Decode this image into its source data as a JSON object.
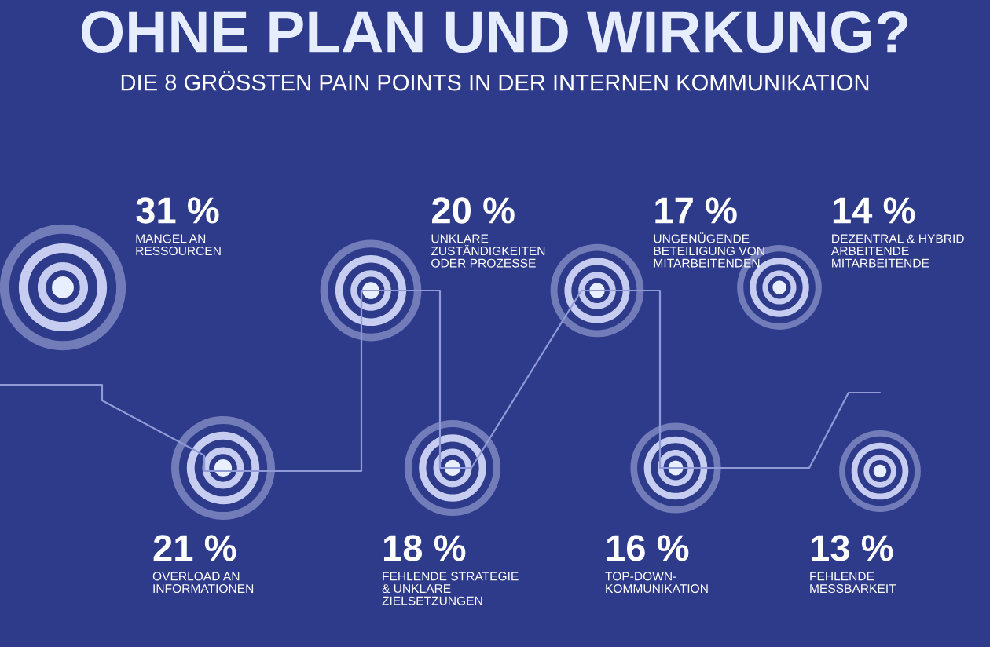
{
  "chart_data": {
    "type": "other",
    "title": "OHNE PLAN UND WIRKUNG?",
    "subtitle": "DIE 8 GRÖSSTEN PAIN POINTS IN DER INTERNEN KOMMUNIKATION",
    "categories": [
      "MANGEL AN\nRESSOURCEN",
      "OVERLOAD AN\nINFORMATIONEN",
      "UNKLARE\nZUSTÄNDIGKEITEN\nODER PROZESSE",
      "FEHLENDE STRATEGIE\n& UNKLARE\nZIELSETZUNGEN",
      "UNGENÜGENDE\nBETEILIGUNG VON\nMITARBEITENDEN",
      "TOP-DOWN-\nKOMMUNIKATION",
      "DEZENTRAL & HYBRID\nARBEITENDE\nMITARBEITENDE",
      "FEHLENDE\nMESSBARKEIT"
    ],
    "values": [
      31,
      21,
      20,
      18,
      17,
      16,
      14,
      13
    ],
    "value_labels": [
      "31 %",
      "21 %",
      "20 %",
      "18 %",
      "17 %",
      "16 %",
      "14 %",
      "13 %"
    ],
    "color": "#a9b3e0"
  }
}
